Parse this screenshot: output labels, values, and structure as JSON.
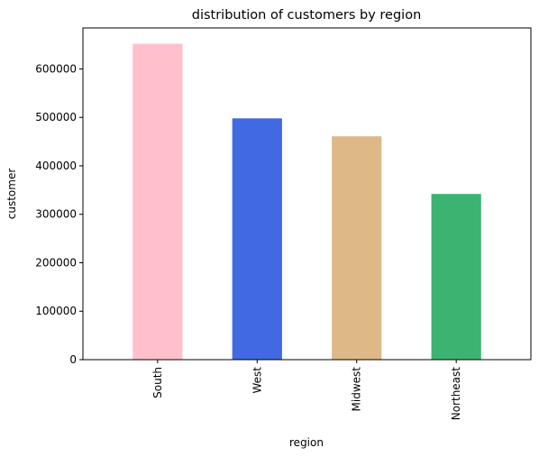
{
  "chart_data": {
    "type": "bar",
    "title": "distribution of customers by region",
    "xlabel": "region",
    "ylabel": "customer",
    "categories": [
      "South",
      "West",
      "Midwest",
      "Northeast"
    ],
    "values": [
      652000,
      498000,
      461000,
      342000
    ],
    "colors": [
      "#ffc0cb",
      "#4169e1",
      "#deb887",
      "#3cb371"
    ],
    "ylim": [
      0,
      684600
    ],
    "yticks": [
      0,
      100000,
      200000,
      300000,
      400000,
      500000,
      600000
    ],
    "ytick_labels": [
      "0",
      "100000",
      "200000",
      "300000",
      "400000",
      "500000",
      "600000"
    ],
    "grid": false,
    "legend": "none"
  }
}
